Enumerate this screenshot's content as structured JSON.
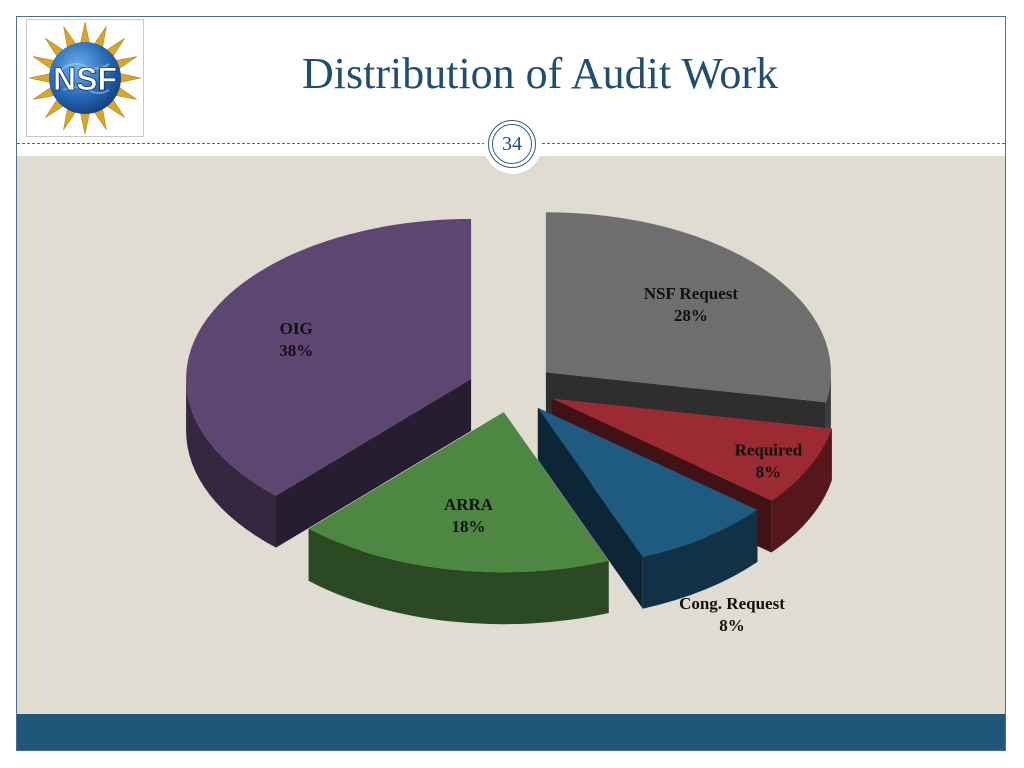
{
  "slide": {
    "title": "Distribution of Audit Work",
    "page_number": "34",
    "logo_text": "NSF"
  },
  "chart_data": {
    "type": "pie",
    "title": "",
    "style": "3d-exploded",
    "slices": [
      {
        "name": "NSF Request",
        "value": 28,
        "label": "28%",
        "color": "#6e6e6e"
      },
      {
        "name": "Required",
        "value": 8,
        "label": "8%",
        "color": "#9b2a33"
      },
      {
        "name": "Cong. Request",
        "value": 8,
        "label": "8%",
        "color": "#1f5a80"
      },
      {
        "name": "ARRA",
        "value": 18,
        "label": "18%",
        "color": "#4e8741"
      },
      {
        "name": "OIG",
        "value": 38,
        "label": "38%",
        "color": "#5e4673"
      }
    ],
    "legend": "none"
  }
}
